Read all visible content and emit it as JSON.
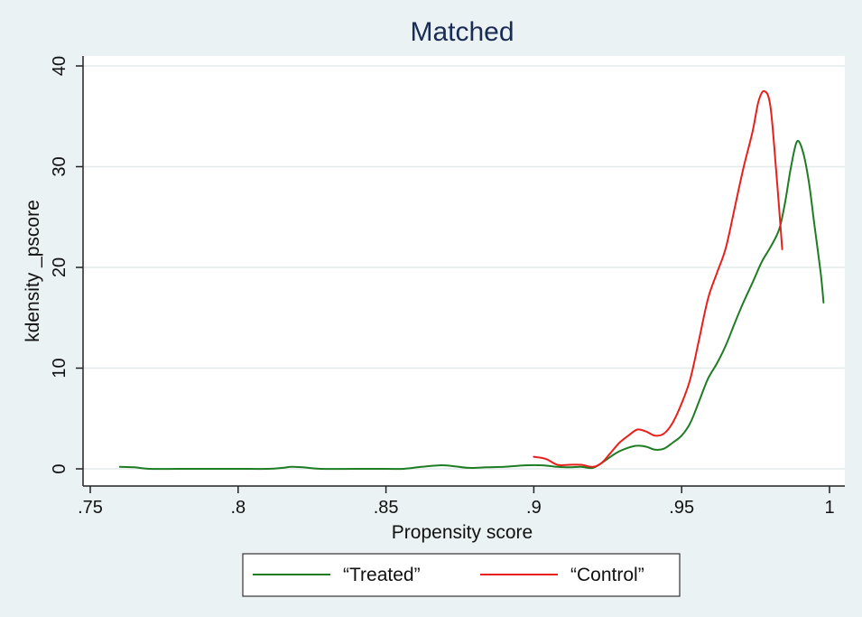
{
  "chart_data": {
    "type": "line",
    "title": "Matched",
    "xlabel": "Propensity score",
    "ylabel": "kdensity _pscore",
    "xlim": [
      0.75,
      1.0
    ],
    "ylim": [
      0,
      40
    ],
    "xticks": [
      0.75,
      0.8,
      0.85,
      0.9,
      0.95,
      1.0
    ],
    "xtick_labels": [
      ".75",
      ".8",
      ".85",
      ".9",
      ".95",
      "1"
    ],
    "yticks": [
      0,
      10,
      20,
      30,
      40
    ],
    "ytick_labels": [
      "0",
      "10",
      "20",
      "30",
      "40"
    ],
    "grid": "horizontal",
    "legend_position": "bottom",
    "series": [
      {
        "name": "“Treated”",
        "color": "#1e7d23",
        "points": [
          [
            0.76,
            0.2
          ],
          [
            0.765,
            0.15
          ],
          [
            0.77,
            0.0
          ],
          [
            0.78,
            0.0
          ],
          [
            0.79,
            0.0
          ],
          [
            0.8,
            0.0
          ],
          [
            0.81,
            0.0
          ],
          [
            0.815,
            0.1
          ],
          [
            0.818,
            0.2
          ],
          [
            0.822,
            0.15
          ],
          [
            0.828,
            0.0
          ],
          [
            0.84,
            0.0
          ],
          [
            0.85,
            0.0
          ],
          [
            0.856,
            0.0
          ],
          [
            0.862,
            0.2
          ],
          [
            0.868,
            0.35
          ],
          [
            0.872,
            0.3
          ],
          [
            0.878,
            0.1
          ],
          [
            0.884,
            0.15
          ],
          [
            0.89,
            0.2
          ],
          [
            0.897,
            0.35
          ],
          [
            0.903,
            0.35
          ],
          [
            0.908,
            0.2
          ],
          [
            0.912,
            0.15
          ],
          [
            0.916,
            0.2
          ],
          [
            0.92,
            0.1
          ],
          [
            0.924,
            0.8
          ],
          [
            0.928,
            1.6
          ],
          [
            0.932,
            2.1
          ],
          [
            0.935,
            2.3
          ],
          [
            0.938,
            2.2
          ],
          [
            0.941,
            1.9
          ],
          [
            0.944,
            2.0
          ],
          [
            0.947,
            2.6
          ],
          [
            0.95,
            3.3
          ],
          [
            0.953,
            4.6
          ],
          [
            0.956,
            6.8
          ],
          [
            0.959,
            9.0
          ],
          [
            0.962,
            10.5
          ],
          [
            0.965,
            12.3
          ],
          [
            0.968,
            14.5
          ],
          [
            0.971,
            16.6
          ],
          [
            0.974,
            18.5
          ],
          [
            0.977,
            20.5
          ],
          [
            0.98,
            22.0
          ],
          [
            0.983,
            23.8
          ],
          [
            0.985,
            26.5
          ],
          [
            0.987,
            30.0
          ],
          [
            0.989,
            32.5
          ],
          [
            0.991,
            31.5
          ],
          [
            0.993,
            28.5
          ],
          [
            0.995,
            24.0
          ],
          [
            0.997,
            19.5
          ],
          [
            0.998,
            16.5
          ]
        ]
      },
      {
        "name": "“Control”",
        "color": "#e8201c",
        "points": [
          [
            0.9,
            1.2
          ],
          [
            0.904,
            1.0
          ],
          [
            0.908,
            0.4
          ],
          [
            0.912,
            0.4
          ],
          [
            0.916,
            0.4
          ],
          [
            0.92,
            0.2
          ],
          [
            0.923,
            0.6
          ],
          [
            0.926,
            1.6
          ],
          [
            0.929,
            2.6
          ],
          [
            0.932,
            3.3
          ],
          [
            0.935,
            3.9
          ],
          [
            0.938,
            3.7
          ],
          [
            0.941,
            3.3
          ],
          [
            0.944,
            3.5
          ],
          [
            0.947,
            4.6
          ],
          [
            0.95,
            6.5
          ],
          [
            0.953,
            9.0
          ],
          [
            0.956,
            13.0
          ],
          [
            0.959,
            17.0
          ],
          [
            0.962,
            19.5
          ],
          [
            0.965,
            22.0
          ],
          [
            0.968,
            26.0
          ],
          [
            0.971,
            30.0
          ],
          [
            0.974,
            33.5
          ],
          [
            0.976,
            36.5
          ],
          [
            0.978,
            37.5
          ],
          [
            0.98,
            36.0
          ],
          [
            0.982,
            29.5
          ],
          [
            0.984,
            21.8
          ]
        ]
      }
    ]
  }
}
